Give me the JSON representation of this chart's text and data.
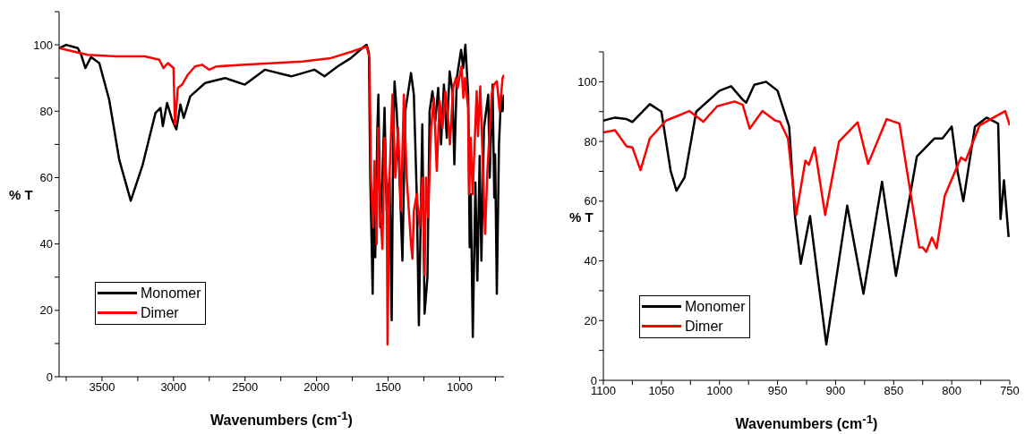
{
  "chart_data": [
    {
      "type": "line",
      "xlabel": "Wavenumbers (cm$^{-1}$)",
      "ylabel": "% T",
      "xlim": [
        3800,
        690
      ],
      "ylim": [
        0,
        110
      ],
      "xticks": [
        {
          "value": 3750,
          "label": null
        },
        3500,
        {
          "value": 3250,
          "label": null
        },
        3000,
        {
          "value": 2750,
          "label": null
        },
        2500,
        {
          "value": 2250,
          "label": null
        },
        2000,
        {
          "value": 1750,
          "label": null
        },
        1500,
        {
          "value": 1250,
          "label": null
        },
        1000,
        {
          "value": 750,
          "label": null
        }
      ],
      "yticks": [
        0,
        {
          "value": 10,
          "label": null
        },
        20,
        {
          "value": 30,
          "label": null
        },
        40,
        {
          "value": 50,
          "label": null
        },
        60,
        {
          "value": 70,
          "label": null
        },
        80,
        {
          "value": 90,
          "label": null
        },
        100,
        {
          "value": 110,
          "label": null
        }
      ],
      "legend": "bottom left",
      "series": [
        {
          "name": "Monomer",
          "color": "#000000",
          "x": [
            3800,
            3750,
            3669,
            3646,
            3616,
            3577,
            3519,
            3450,
            3380,
            3299,
            3218,
            3126,
            3091,
            3075,
            3045,
            3010,
            2980,
            2952,
            2929,
            2883,
            2779,
            2640,
            2501,
            2362,
            2177,
            2015,
            1945,
            1853,
            1760,
            1668,
            1650,
            1634,
            1625,
            1615,
            1608,
            1600,
            1590,
            1575,
            1568,
            1555,
            1540,
            1525,
            1510,
            1490,
            1475,
            1465,
            1455,
            1440,
            1420,
            1400,
            1380,
            1340,
            1320,
            1300,
            1285,
            1261,
            1245,
            1225,
            1210,
            1190,
            1170,
            1150,
            1130,
            1110,
            1090,
            1070,
            1050,
            1037,
            1020,
            990,
            975,
            960,
            940,
            930,
            922,
            908,
            890,
            876,
            860,
            848,
            830,
            800,
            790,
            770,
            758,
            752,
            740,
            725,
            710,
            700,
            690
          ],
          "values": [
            99,
            100,
            99,
            97,
            93,
            96.3,
            94.5,
            83.5,
            65.5,
            53,
            63.5,
            79.5,
            81,
            75.5,
            82.5,
            77.5,
            74.5,
            82,
            78,
            84.5,
            88.5,
            90,
            88,
            92.5,
            90.5,
            92.5,
            90.5,
            93.5,
            96,
            99.5,
            100,
            97.5,
            60,
            40,
            25,
            55,
            36,
            75,
            85,
            45,
            60,
            81,
            50,
            60,
            17,
            70,
            89,
            80,
            60,
            35,
            80,
            91.5,
            85,
            55,
            15.5,
            76,
            19,
            30,
            80,
            86,
            77,
            87,
            70,
            88,
            72,
            92,
            86,
            64,
            90,
            98.5,
            93,
            100,
            85,
            39,
            55,
            12,
            58.5,
            29,
            66.5,
            35,
            75,
            85,
            60,
            88,
            54,
            67,
            25,
            70,
            85,
            80,
            85
          ]
        },
        {
          "name": "Dimer",
          "color": "#ff0000",
          "x": [
            3800,
            3700,
            3600,
            3400,
            3200,
            3100,
            3070,
            3040,
            3000,
            2990,
            2970,
            2940,
            2900,
            2850,
            2800,
            2750,
            2700,
            2500,
            2300,
            2100,
            1900,
            1750,
            1650,
            1630,
            1620,
            1605,
            1595,
            1580,
            1570,
            1555,
            1540,
            1525,
            1510,
            1504,
            1490,
            1470,
            1450,
            1430,
            1410,
            1390,
            1370,
            1340,
            1330,
            1320,
            1300,
            1280,
            1260,
            1245,
            1235,
            1220,
            1200,
            1180,
            1160,
            1140,
            1120,
            1100,
            1090,
            1068,
            1046,
            1026,
            1014,
            987,
            974,
            963,
            941,
            934,
            923,
            909,
            881,
            872,
            856,
            822,
            806,
            776,
            760,
            740,
            720,
            700,
            690
          ],
          "values": [
            99,
            98,
            97,
            96.5,
            96.5,
            95.5,
            93,
            94.5,
            93,
            76,
            87,
            88,
            91,
            93.5,
            94,
            92.5,
            93.5,
            94,
            94.5,
            95,
            96,
            98,
            99.5,
            96,
            60,
            45,
            65,
            40,
            75,
            50,
            38.5,
            72,
            55,
            9.7,
            60,
            85,
            60,
            75,
            50,
            85,
            60,
            40,
            35.5,
            50,
            55,
            45,
            60,
            30.5,
            60,
            48,
            75,
            84,
            62,
            83,
            75,
            86,
            83,
            70,
            87,
            90,
            87,
            93.5,
            84,
            90,
            81,
            55,
            72,
            55,
            86,
            72.5,
            87.5,
            43,
            62,
            85,
            88,
            89,
            80,
            90,
            91
          ]
        }
      ]
    },
    {
      "type": "line",
      "xlabel": "Wavenumbers (cm$^{-1}$)",
      "ylabel": "% T",
      "xlim": [
        1100,
        750
      ],
      "ylim": [
        0,
        110
      ],
      "xticks": [
        1100,
        {
          "value": 1075,
          "label": null
        },
        1050,
        {
          "value": 1025,
          "label": null
        },
        1000,
        {
          "value": 975,
          "label": null
        },
        950,
        {
          "value": 925,
          "label": null
        },
        900,
        {
          "value": 875,
          "label": null
        },
        850,
        {
          "value": 825,
          "label": null
        },
        800,
        {
          "value": 775,
          "label": null
        },
        750
      ],
      "yticks": [
        0,
        {
          "value": 10,
          "label": null
        },
        20,
        {
          "value": 30,
          "label": null
        },
        40,
        {
          "value": 50,
          "label": null
        },
        60,
        {
          "value": 70,
          "label": null
        },
        80,
        {
          "value": 90,
          "label": null
        },
        100,
        {
          "value": 110,
          "label": null
        }
      ],
      "legend": "bottom left",
      "series": [
        {
          "name": "Monomer",
          "color": "#000000",
          "x": [
            1100,
            1090,
            1080,
            1075,
            1060,
            1050,
            1042,
            1037,
            1030,
            1020,
            1000,
            990,
            980,
            977,
            970,
            960,
            950,
            940,
            935,
            930,
            922,
            908,
            890,
            876,
            860,
            848,
            830,
            815,
            808,
            800,
            795,
            790,
            780,
            770,
            760,
            758,
            755,
            751
          ],
          "values": [
            87,
            88,
            87.5,
            86.5,
            92.5,
            90,
            70,
            63.5,
            68,
            90,
            97,
            98.5,
            94,
            93,
            99,
            100,
            97,
            85,
            55,
            39,
            55,
            12,
            58.5,
            29,
            66.5,
            35,
            75,
            81,
            81,
            85,
            70,
            60,
            85,
            88,
            86,
            54,
            67,
            48
          ]
        },
        {
          "name": "Dimer",
          "color": "#ff0000",
          "x": [
            1100,
            1090,
            1080,
            1075,
            1068,
            1060,
            1046,
            1026,
            1014,
            1002,
            987,
            980,
            974,
            963,
            952,
            948,
            941,
            934,
            926,
            923,
            918,
            909,
            897,
            881,
            872,
            856,
            845,
            828,
            825,
            822,
            817,
            813,
            806,
            792,
            788,
            776,
            754,
            750
          ],
          "values": [
            83,
            83.8,
            78.4,
            78,
            70.4,
            81,
            87,
            90.2,
            86.6,
            91.8,
            93.4,
            92.3,
            84.3,
            90.2,
            87,
            86.6,
            81,
            55.4,
            73.6,
            72.2,
            78,
            55.4,
            80,
            86.4,
            72.5,
            87.5,
            86,
            44.5,
            44.5,
            43,
            47.8,
            44.2,
            61.8,
            74.6,
            73.6,
            85.4,
            90.2,
            85.4
          ]
        }
      ]
    }
  ]
}
